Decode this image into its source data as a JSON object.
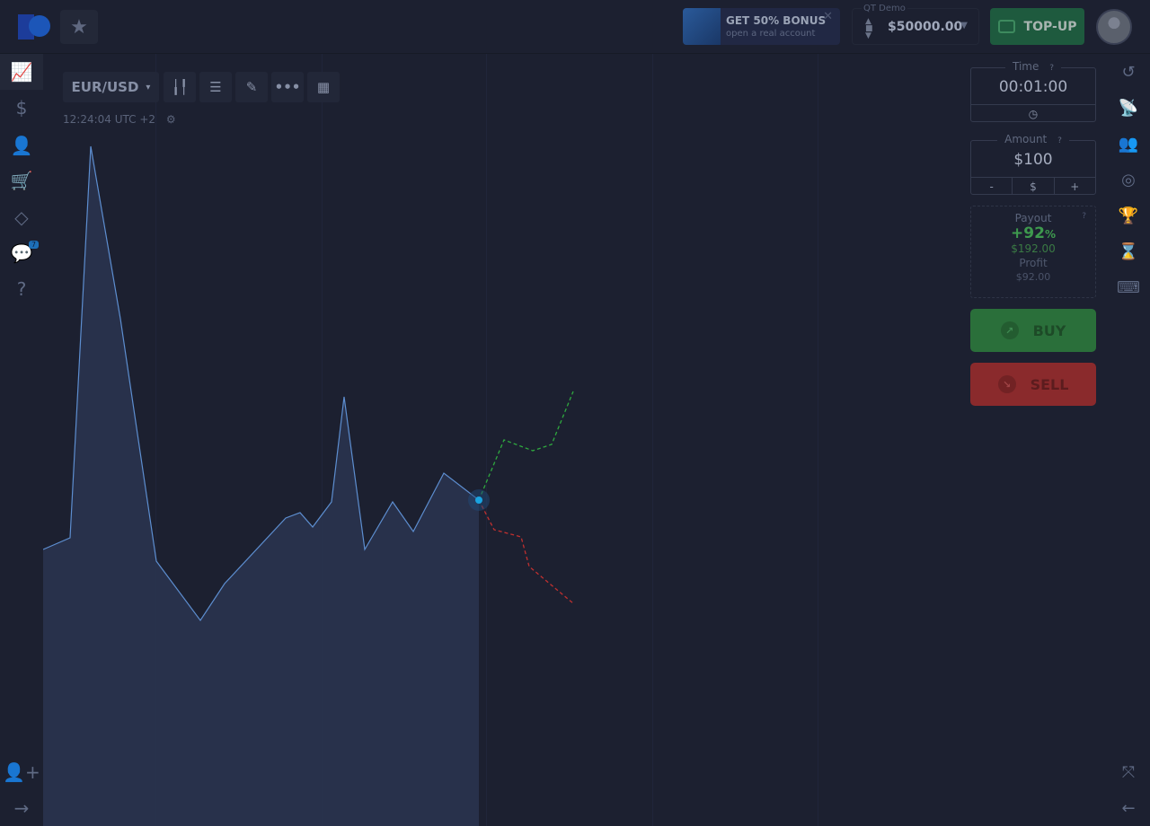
{
  "header": {
    "bonus_title": "GET 50% BONUS",
    "bonus_sub": "open a real account",
    "close": "✕",
    "account_label": "QT Demo",
    "balance": "$50000.00",
    "topup": "TOP-UP"
  },
  "left_nav": [
    {
      "icon": "chart-line-icon",
      "glyph": "📈"
    },
    {
      "icon": "dollar-icon",
      "glyph": "$"
    },
    {
      "icon": "user-icon",
      "glyph": "👤"
    },
    {
      "icon": "cart-icon",
      "glyph": "🛒"
    },
    {
      "icon": "diamond-icon",
      "glyph": "◇"
    },
    {
      "icon": "chat-icon",
      "glyph": "💬",
      "badge": "7"
    },
    {
      "icon": "help-icon",
      "glyph": "?"
    }
  ],
  "left_bottom": [
    {
      "icon": "add-user-icon",
      "glyph": "👤+"
    },
    {
      "icon": "arrow-right-icon",
      "glyph": "→"
    }
  ],
  "toolbar": {
    "pair": "EUR/USD",
    "caret": "▾",
    "clock": "12:24:04 UTC +2"
  },
  "trade": {
    "time_label": "Time",
    "time": "00:01:00",
    "amount_label": "Amount",
    "amount": "$100",
    "minus": "-",
    "currency": "$",
    "plus": "+",
    "payout_label": "Payout",
    "payout_pct": "+92",
    "pct": "%",
    "payout_value": "$192.00",
    "profit_label": "Profit",
    "profit_value": "$92.00",
    "buy": "BUY",
    "sell": "SELL",
    "help": "?"
  },
  "right_nav": [
    {
      "icon": "history-icon",
      "glyph": "↺"
    },
    {
      "icon": "signal-icon",
      "glyph": "📡"
    },
    {
      "icon": "people-icon",
      "glyph": "👥"
    },
    {
      "icon": "target-icon",
      "glyph": "◎"
    },
    {
      "icon": "trophy-icon",
      "glyph": "🏆"
    },
    {
      "icon": "hourglass-icon",
      "glyph": "⌛"
    },
    {
      "icon": "keyboard-icon",
      "glyph": "⌨"
    }
  ],
  "right_bottom": [
    {
      "icon": "fullscreen-icon",
      "glyph": "⤧"
    },
    {
      "icon": "arrow-left-icon",
      "glyph": "←"
    }
  ],
  "colors": {
    "buy": "#2a6f3a",
    "sell": "#8a2a2c",
    "accent": "#2e8ee0",
    "payout": "#3e9a4e"
  }
}
